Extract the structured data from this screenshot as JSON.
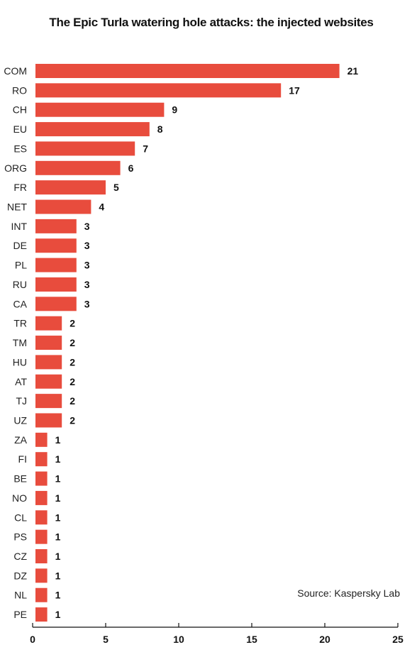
{
  "chart_data": {
    "type": "bar",
    "orientation": "horizontal",
    "title": "The Epic Turla watering hole attacks: the injected websites",
    "source": "Source: Kaspersky Lab",
    "bar_color": "#e84c3d",
    "categories": [
      "COM",
      "RO",
      "CH",
      "EU",
      "ES",
      "ORG",
      "FR",
      "NET",
      "INT",
      "DE",
      "PL",
      "RU",
      "CA",
      "TR",
      "TM",
      "HU",
      "AT",
      "TJ",
      "UZ",
      "ZA",
      "FI",
      "BE",
      "NO",
      "CL",
      "PS",
      "CZ",
      "DZ",
      "NL",
      "PE"
    ],
    "values": [
      21,
      17,
      9,
      8,
      7,
      6,
      5,
      4,
      3,
      3,
      3,
      3,
      3,
      2,
      2,
      2,
      2,
      2,
      2,
      1,
      1,
      1,
      1,
      1,
      1,
      1,
      1,
      1,
      1
    ],
    "xlim": [
      0,
      25
    ],
    "xticks": [
      0,
      5,
      10,
      15,
      20,
      25
    ],
    "grid": false,
    "legend": "none"
  }
}
